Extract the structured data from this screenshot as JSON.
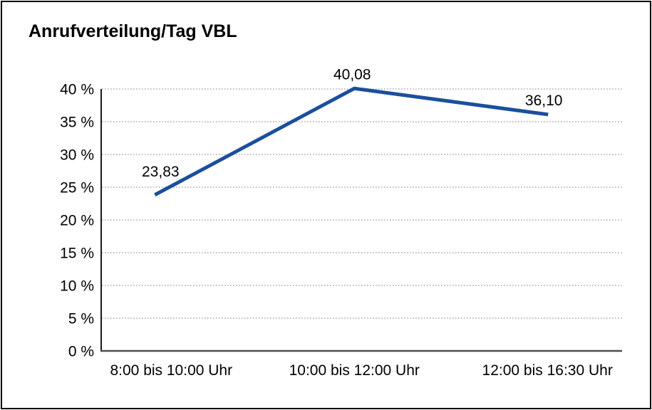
{
  "title": "Anrufverteilung/Tag VBL",
  "chart_data": {
    "type": "line",
    "title": "Anrufverteilung/Tag VBL",
    "categories": [
      "8:00 bis 10:00 Uhr",
      "10:00 bis 12:00 Uhr",
      "12:00 bis 16:30 Uhr"
    ],
    "series": [
      {
        "name": "Anrufverteilung/Tag VBL",
        "values": [
          23.83,
          40.08,
          36.1
        ],
        "point_labels": [
          "23,83",
          "40,08",
          "36,10"
        ],
        "color": "#1B4F9C"
      }
    ],
    "xlabel": "",
    "ylabel": "",
    "ylim": [
      0,
      40
    ],
    "ytick_step": 5,
    "ytick_labels": [
      "0 %",
      "5 %",
      "10 %",
      "15 %",
      "20 %",
      "25 %",
      "30 %",
      "35 %",
      "40 %"
    ],
    "grid": "horizontal-dotted",
    "legend": "none"
  },
  "colors": {
    "line": "#1B4F9C",
    "gridline": "#999999",
    "y_axis": "#1a1a1a",
    "x_axis": "#4d4d4d",
    "text": "#000000",
    "background": "#ffffff",
    "border": "#000000"
  }
}
